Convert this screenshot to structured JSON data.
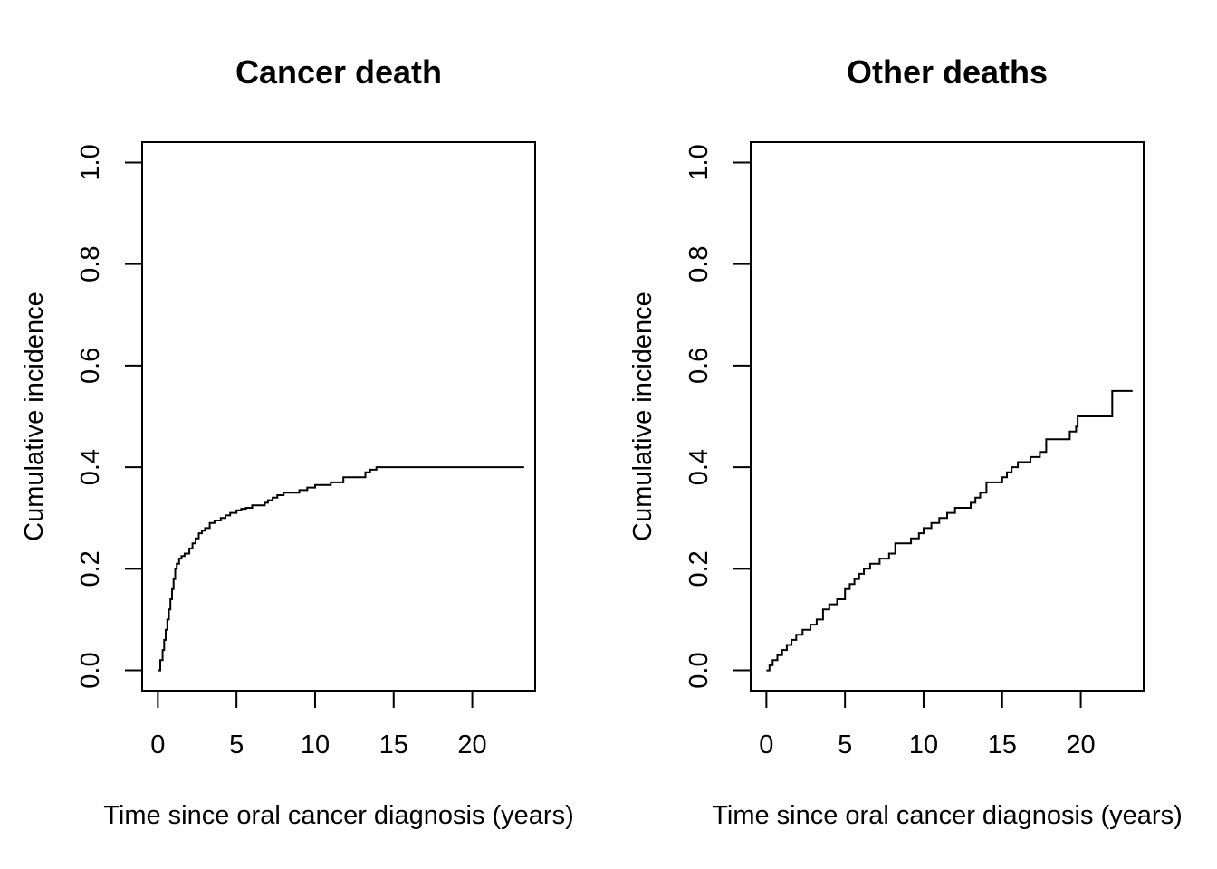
{
  "chart_data": [
    {
      "type": "line",
      "step": true,
      "title": "Cancer death",
      "xlabel": "Time since oral cancer diagnosis (years)",
      "ylabel": "Cumulative incidence",
      "xlim": [
        -1,
        24
      ],
      "ylim": [
        -0.04,
        1.04
      ],
      "xticks": [
        0,
        5,
        10,
        15,
        20
      ],
      "yticks": [
        0.0,
        0.2,
        0.4,
        0.6,
        0.8,
        1.0
      ],
      "xtick_labels": [
        "0",
        "5",
        "10",
        "15",
        "20"
      ],
      "ytick_labels": [
        "0.0",
        "0.2",
        "0.4",
        "0.6",
        "0.8",
        "1.0"
      ],
      "grid": false,
      "series": [
        {
          "color": "#000000",
          "x": [
            0,
            0.15,
            0.3,
            0.4,
            0.5,
            0.6,
            0.7,
            0.8,
            0.9,
            1.0,
            1.1,
            1.2,
            1.35,
            1.5,
            1.7,
            2.0,
            2.2,
            2.4,
            2.6,
            2.8,
            3.0,
            3.3,
            3.6,
            4.0,
            4.3,
            4.6,
            5.0,
            5.3,
            5.6,
            6.0,
            6.8,
            7.0,
            7.3,
            7.6,
            8.0,
            9.0,
            9.5,
            10.0,
            11.0,
            11.8,
            13.2,
            13.5,
            13.9,
            23.3
          ],
          "y": [
            0.0,
            0.02,
            0.04,
            0.06,
            0.08,
            0.1,
            0.12,
            0.14,
            0.16,
            0.18,
            0.2,
            0.21,
            0.22,
            0.225,
            0.23,
            0.24,
            0.25,
            0.26,
            0.27,
            0.275,
            0.28,
            0.29,
            0.295,
            0.3,
            0.305,
            0.31,
            0.315,
            0.318,
            0.32,
            0.325,
            0.33,
            0.335,
            0.34,
            0.345,
            0.35,
            0.355,
            0.36,
            0.365,
            0.37,
            0.38,
            0.39,
            0.395,
            0.4,
            0.4
          ]
        }
      ]
    },
    {
      "type": "line",
      "step": true,
      "title": "Other deaths",
      "xlabel": "Time since oral cancer diagnosis (years)",
      "ylabel": "Cumulative incidence",
      "xlim": [
        -1,
        24
      ],
      "ylim": [
        -0.04,
        1.04
      ],
      "xticks": [
        0,
        5,
        10,
        15,
        20
      ],
      "yticks": [
        0.0,
        0.2,
        0.4,
        0.6,
        0.8,
        1.0
      ],
      "xtick_labels": [
        "0",
        "5",
        "10",
        "15",
        "20"
      ],
      "ytick_labels": [
        "0.0",
        "0.2",
        "0.4",
        "0.6",
        "0.8",
        "1.0"
      ],
      "grid": false,
      "series": [
        {
          "color": "#000000",
          "x": [
            0,
            0.2,
            0.4,
            0.7,
            1.0,
            1.3,
            1.6,
            1.9,
            2.3,
            2.8,
            3.2,
            3.6,
            4.0,
            4.5,
            5.0,
            5.3,
            5.6,
            5.9,
            6.2,
            6.6,
            7.2,
            7.8,
            8.2,
            9.2,
            9.7,
            10.0,
            10.5,
            11.0,
            11.5,
            12.0,
            13.0,
            13.3,
            13.6,
            14.0,
            15.0,
            15.3,
            15.6,
            16.0,
            16.8,
            17.4,
            17.8,
            19.3,
            19.7,
            19.8,
            22.0,
            23.3
          ],
          "y": [
            0.0,
            0.01,
            0.02,
            0.03,
            0.04,
            0.05,
            0.06,
            0.07,
            0.08,
            0.09,
            0.1,
            0.12,
            0.13,
            0.14,
            0.16,
            0.17,
            0.18,
            0.19,
            0.2,
            0.21,
            0.22,
            0.23,
            0.25,
            0.26,
            0.27,
            0.28,
            0.29,
            0.3,
            0.31,
            0.32,
            0.33,
            0.34,
            0.35,
            0.37,
            0.38,
            0.39,
            0.4,
            0.41,
            0.42,
            0.43,
            0.455,
            0.47,
            0.48,
            0.5,
            0.55,
            0.55
          ]
        }
      ]
    }
  ]
}
